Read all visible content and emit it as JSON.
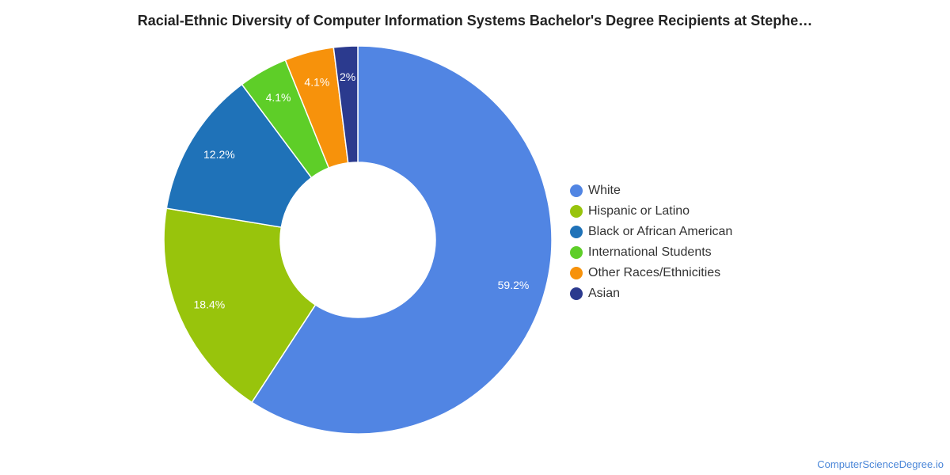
{
  "chart_data": {
    "type": "pie",
    "variant": "donut",
    "title": "Racial-Ethnic Diversity of Computer Information Systems Bachelor's Degree Recipients at Stephe…",
    "legend_position": "right",
    "slices": [
      {
        "label": "White",
        "value": 59.2,
        "display": "59.2%",
        "color": "#5185e3"
      },
      {
        "label": "Hispanic or Latino",
        "value": 18.4,
        "display": "18.4%",
        "color": "#98c40c"
      },
      {
        "label": "Black or African American",
        "value": 12.2,
        "display": "12.2%",
        "color": "#1f72b8"
      },
      {
        "label": "International Students",
        "value": 4.1,
        "display": "4.1%",
        "color": "#5ece28"
      },
      {
        "label": "Other Races/Ethnicities",
        "value": 4.1,
        "display": "4.1%",
        "color": "#f7920b"
      },
      {
        "label": "Asian",
        "value": 2.0,
        "display": "2%",
        "color": "#2b3a8e"
      }
    ]
  },
  "watermark": "ComputerScienceDegree.io"
}
